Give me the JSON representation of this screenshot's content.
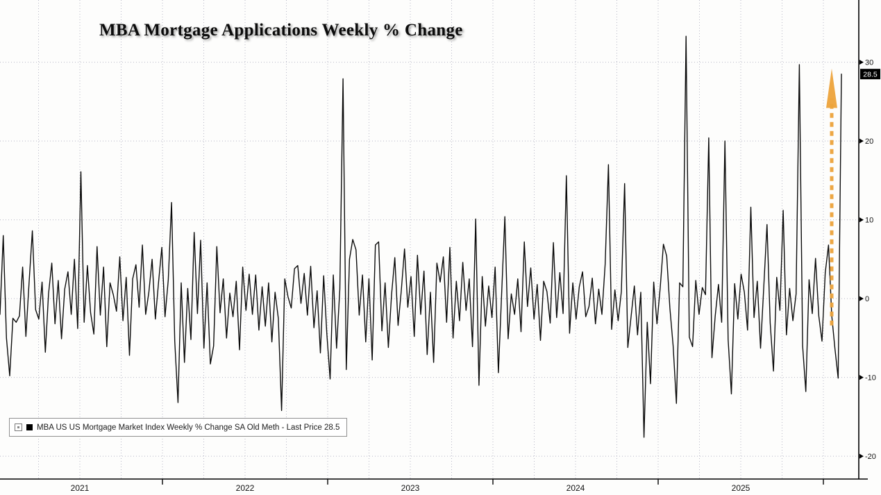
{
  "title": "MBA Mortgage Applications Weekly % Change",
  "legend": {
    "label": "MBA US US Mortgage Market Index Weekly % Change SA Old Meth - Last Price 28.5"
  },
  "colors": {
    "background": "#fdfdfc",
    "grid": "#b7b7c6",
    "axis": "#000000",
    "series_line": "#0a0a0a",
    "annotation_arrow": "#EDA33B",
    "last_price_box_bg": "#000000",
    "last_price_box_text": "#ffffff",
    "axis_label_text": "#111111"
  },
  "chart_data": {
    "type": "line",
    "title": "MBA Mortgage Applications Weekly % Change",
    "xlabel": "",
    "ylabel": "",
    "legend_position": "bottom-left",
    "grid": "dotted",
    "x_axis": {
      "unit": "weekly",
      "year_labels": [
        "2021",
        "2022",
        "2023",
        "2024",
        "2025"
      ],
      "gridlines": "quarterly"
    },
    "y_axis": {
      "ticks": [
        30,
        20,
        10,
        0,
        -10,
        -20
      ],
      "range": [
        -22.9,
        37.9
      ],
      "side": "right"
    },
    "last_price_marker": {
      "text": "28.5",
      "value": 28.5
    },
    "annotation": {
      "type": "dashed-arrow-up",
      "color": "#EDA33B",
      "points_to_value": 28.5
    },
    "series": [
      {
        "name": "MBA US US Mortgage Market Index Weekly % Change SA Old Meth",
        "last_price": 28.5,
        "color": "#000000",
        "values": [
          -2.0,
          8.0,
          -5.0,
          -9.8,
          -2.5,
          -3.0,
          -2.2,
          4.0,
          -4.8,
          2.2,
          8.6,
          -1.4,
          -2.6,
          2.1,
          -6.8,
          0.6,
          4.5,
          -3.2,
          2.3,
          -5.1,
          1.2,
          3.4,
          -2.0,
          5.0,
          -3.8,
          16.1,
          -3.0,
          4.2,
          -1.8,
          -4.5,
          6.6,
          -2.1,
          4.0,
          -6.1,
          2.0,
          0.5,
          -1.6,
          5.3,
          -2.8,
          2.7,
          -7.2,
          2.5,
          4.3,
          -1.1,
          6.8,
          -2.0,
          0.8,
          5.0,
          -2.6,
          2.1,
          6.5,
          -2.3,
          2.4,
          12.2,
          -5.4,
          -13.2,
          2.0,
          -8.1,
          1.3,
          -5.2,
          8.4,
          -1.9,
          7.4,
          -6.3,
          2.0,
          -8.3,
          -6.0,
          6.6,
          -1.8,
          2.5,
          -5.0,
          0.7,
          -2.3,
          2.2,
          -6.5,
          4.0,
          -1.5,
          3.1,
          -2.0,
          3.0,
          -4.0,
          1.5,
          -3.5,
          2.0,
          -5.5,
          0.8,
          -2.5,
          -14.2,
          2.5,
          0.2,
          -1.2,
          3.8,
          4.2,
          -0.6,
          3.2,
          -2.1,
          4.1,
          -3.7,
          1.0,
          -6.9,
          2.9,
          -4.5,
          -10.2,
          3.0,
          -6.3,
          1.2,
          27.9,
          -9.0,
          5.0,
          7.5,
          6.2,
          -2.1,
          3.0,
          -5.5,
          2.5,
          -7.8,
          6.8,
          7.2,
          -4.1,
          2.0,
          -6.2,
          0.5,
          5.2,
          -3.4,
          1.0,
          6.3,
          -1.1,
          2.8,
          -4.8,
          5.5,
          -2.0,
          3.5,
          -7.1,
          0.8,
          -8.1,
          4.5,
          2.1,
          5.3,
          -3.0,
          6.5,
          -5.0,
          2.2,
          -2.8,
          4.6,
          -1.5,
          2.5,
          -6.1,
          10.1,
          -11.0,
          2.8,
          -3.5,
          1.6,
          -2.4,
          4.0,
          -9.4,
          0.5,
          10.4,
          -5.1,
          0.6,
          -2.0,
          2.5,
          -4.2,
          7.2,
          -1.0,
          3.9,
          -2.6,
          1.8,
          -5.3,
          2.2,
          0.9,
          -3.1,
          7.1,
          -2.4,
          3.3,
          -1.9,
          15.6,
          -4.4,
          2.0,
          -2.6,
          1.5,
          3.4,
          -2.3,
          -1.0,
          2.6,
          -3.2,
          1.2,
          -2.0,
          4.4,
          17.0,
          -3.9,
          1.1,
          -2.8,
          0.9,
          14.6,
          -6.2,
          -2.3,
          1.6,
          -4.6,
          0.8,
          -17.6,
          -3.0,
          -10.8,
          2.1,
          -3.2,
          1.4,
          6.9,
          5.4,
          -1.2,
          -6.0,
          -13.3,
          2.0,
          1.5,
          33.3,
          -4.9,
          -6.1,
          2.3,
          -2.0,
          1.4,
          0.5,
          20.4,
          -7.5,
          -2.2,
          1.8,
          -3.0,
          20.0,
          -5.2,
          -12.1,
          1.9,
          -2.6,
          3.1,
          0.8,
          -4.0,
          11.6,
          -2.4,
          2.2,
          -6.3,
          1.4,
          9.4,
          -3.1,
          -9.2,
          2.7,
          -1.5,
          11.2,
          -4.6,
          1.3,
          -2.8,
          0.6,
          29.7,
          -6.0,
          -11.8,
          2.4,
          -1.9,
          5.1,
          -2.2,
          -5.4,
          3.3,
          6.8,
          -2.1,
          -6.4,
          -10.1,
          28.5
        ]
      }
    ]
  }
}
